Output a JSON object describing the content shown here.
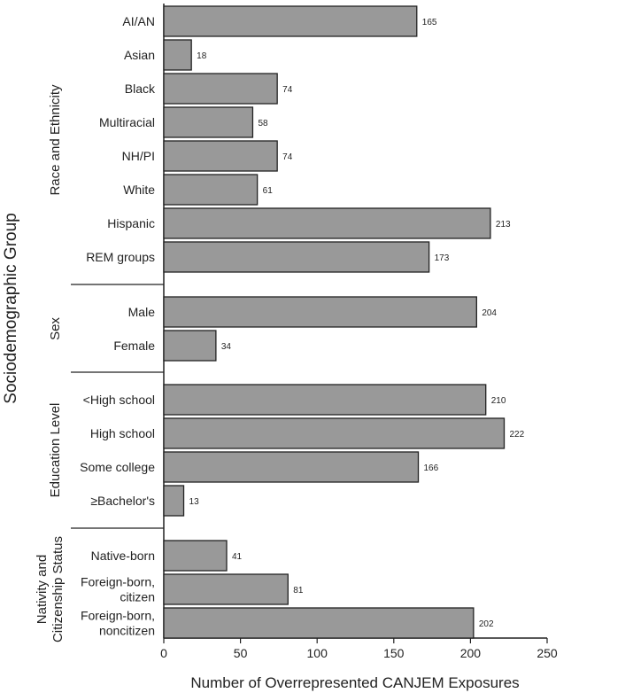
{
  "chart_data": {
    "type": "bar",
    "orientation": "horizontal",
    "xlabel": "Number of Overrepresented CANJEM Exposures",
    "ylabel": "Sociodemographic Group",
    "xlim": [
      0,
      250
    ],
    "xticks": [
      0,
      50,
      100,
      150,
      200,
      250
    ],
    "groups": [
      {
        "name": "Race and Ethnicity",
        "name_lines": [
          "Race and  Ethnicity"
        ],
        "bars": [
          {
            "label": [
              "AI/AN"
            ],
            "value": 165
          },
          {
            "label": [
              "Asian"
            ],
            "value": 18
          },
          {
            "label": [
              "Black"
            ],
            "value": 74
          },
          {
            "label": [
              "Multiracial"
            ],
            "value": 58
          },
          {
            "label": [
              "NH/PI"
            ],
            "value": 74
          },
          {
            "label": [
              "White"
            ],
            "value": 61
          },
          {
            "label": [
              "Hispanic"
            ],
            "value": 213
          },
          {
            "label": [
              "REM groups"
            ],
            "value": 173
          }
        ]
      },
      {
        "name": "Sex",
        "name_lines": [
          "Sex"
        ],
        "bars": [
          {
            "label": [
              "Male"
            ],
            "value": 204
          },
          {
            "label": [
              "Female"
            ],
            "value": 34
          }
        ]
      },
      {
        "name": "Education Level",
        "name_lines": [
          "Education Level"
        ],
        "bars": [
          {
            "label": [
              "<High school"
            ],
            "value": 210
          },
          {
            "label": [
              "High school"
            ],
            "value": 222
          },
          {
            "label": [
              "Some college"
            ],
            "value": 166
          },
          {
            "label": [
              "≥Bachelor's"
            ],
            "value": 13
          }
        ]
      },
      {
        "name": "Nativity and Citizenship Status",
        "name_lines": [
          "Nativity and",
          "Citizenship Status"
        ],
        "bars": [
          {
            "label": [
              "Native-born"
            ],
            "value": 41
          },
          {
            "label": [
              "Foreign-born,",
              "citizen"
            ],
            "value": 81
          },
          {
            "label": [
              "Foreign-born,",
              "noncitizen"
            ],
            "value": 202
          }
        ]
      }
    ]
  }
}
